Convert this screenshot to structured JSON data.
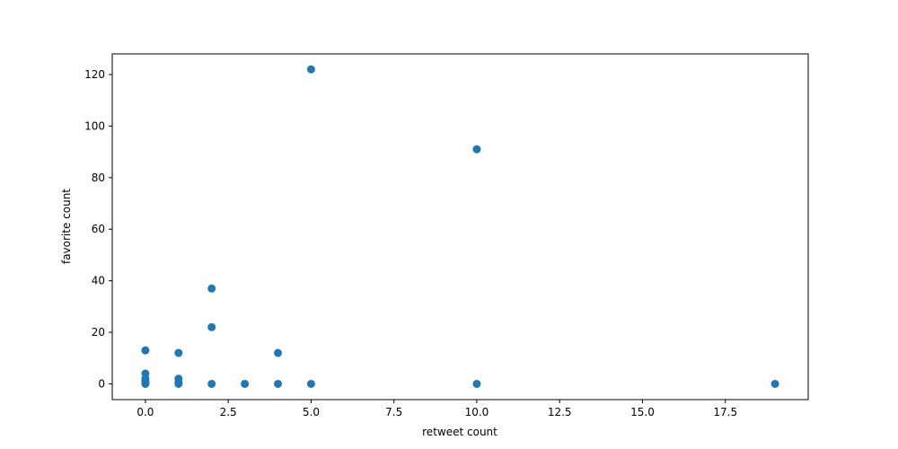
{
  "chart_data": {
    "type": "scatter",
    "title": "",
    "xlabel": "retweet count",
    "ylabel": "favorite count",
    "xlim": [
      -1.0,
      20.0
    ],
    "ylim": [
      -6.1,
      128.0
    ],
    "xticks": [
      0.0,
      2.5,
      5.0,
      7.5,
      10.0,
      12.5,
      15.0,
      17.5
    ],
    "xtick_labels": [
      "0.0",
      "2.5",
      "5.0",
      "7.5",
      "10.0",
      "12.5",
      "15.0",
      "17.5"
    ],
    "yticks": [
      0,
      20,
      40,
      60,
      80,
      100,
      120
    ],
    "ytick_labels": [
      "0",
      "20",
      "40",
      "60",
      "80",
      "100",
      "120"
    ],
    "grid": false,
    "legend": "none",
    "marker_color": "#1f77b4",
    "points": [
      {
        "x": 0,
        "y": 0
      },
      {
        "x": 0,
        "y": 0.5
      },
      {
        "x": 0,
        "y": 1
      },
      {
        "x": 0,
        "y": 2
      },
      {
        "x": 0,
        "y": 4
      },
      {
        "x": 0,
        "y": 13
      },
      {
        "x": 1,
        "y": 0
      },
      {
        "x": 1,
        "y": 0.5
      },
      {
        "x": 1,
        "y": 2
      },
      {
        "x": 1,
        "y": 12
      },
      {
        "x": 2,
        "y": 0
      },
      {
        "x": 2,
        "y": 22
      },
      {
        "x": 2,
        "y": 37
      },
      {
        "x": 3,
        "y": 0
      },
      {
        "x": 4,
        "y": 0
      },
      {
        "x": 4,
        "y": 12
      },
      {
        "x": 5,
        "y": 0
      },
      {
        "x": 5,
        "y": 122
      },
      {
        "x": 10,
        "y": 0
      },
      {
        "x": 10,
        "y": 91
      },
      {
        "x": 19,
        "y": 0
      }
    ]
  }
}
